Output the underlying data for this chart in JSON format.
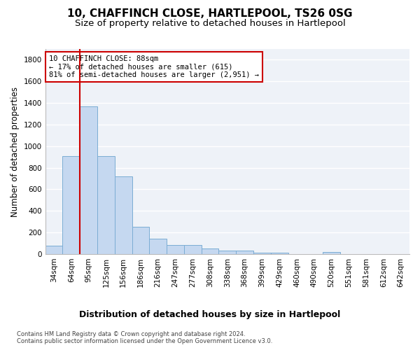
{
  "title1": "10, CHAFFINCH CLOSE, HARTLEPOOL, TS26 0SG",
  "title2": "Size of property relative to detached houses in Hartlepool",
  "xlabel": "Distribution of detached houses by size in Hartlepool",
  "ylabel": "Number of detached properties",
  "footnote1": "Contains HM Land Registry data © Crown copyright and database right 2024.",
  "footnote2": "Contains public sector information licensed under the Open Government Licence v3.0.",
  "categories": [
    "34sqm",
    "64sqm",
    "95sqm",
    "125sqm",
    "156sqm",
    "186sqm",
    "216sqm",
    "247sqm",
    "277sqm",
    "308sqm",
    "338sqm",
    "368sqm",
    "399sqm",
    "429sqm",
    "460sqm",
    "490sqm",
    "520sqm",
    "551sqm",
    "581sqm",
    "612sqm",
    "642sqm"
  ],
  "values": [
    80,
    910,
    1370,
    910,
    720,
    250,
    140,
    85,
    85,
    50,
    30,
    30,
    15,
    15,
    0,
    0,
    20,
    0,
    0,
    0,
    0
  ],
  "bar_color": "#c5d8f0",
  "bar_edge_color": "#7badd4",
  "vline_x_idx": 1.5,
  "vline_color": "#cc0000",
  "annotation_text": "10 CHAFFINCH CLOSE: 88sqm\n← 17% of detached houses are smaller (615)\n81% of semi-detached houses are larger (2,951) →",
  "annotation_box_color": "white",
  "annotation_box_edge_color": "#cc0000",
  "ylim": [
    0,
    1900
  ],
  "yticks": [
    0,
    200,
    400,
    600,
    800,
    1000,
    1200,
    1400,
    1600,
    1800
  ],
  "bg_color": "#eef2f8",
  "grid_color": "#ffffff",
  "title1_fontsize": 11,
  "title2_fontsize": 9.5,
  "xlabel_fontsize": 9,
  "ylabel_fontsize": 8.5,
  "tick_fontsize": 7.5,
  "annot_fontsize": 7.5,
  "footnote_fontsize": 6.0
}
